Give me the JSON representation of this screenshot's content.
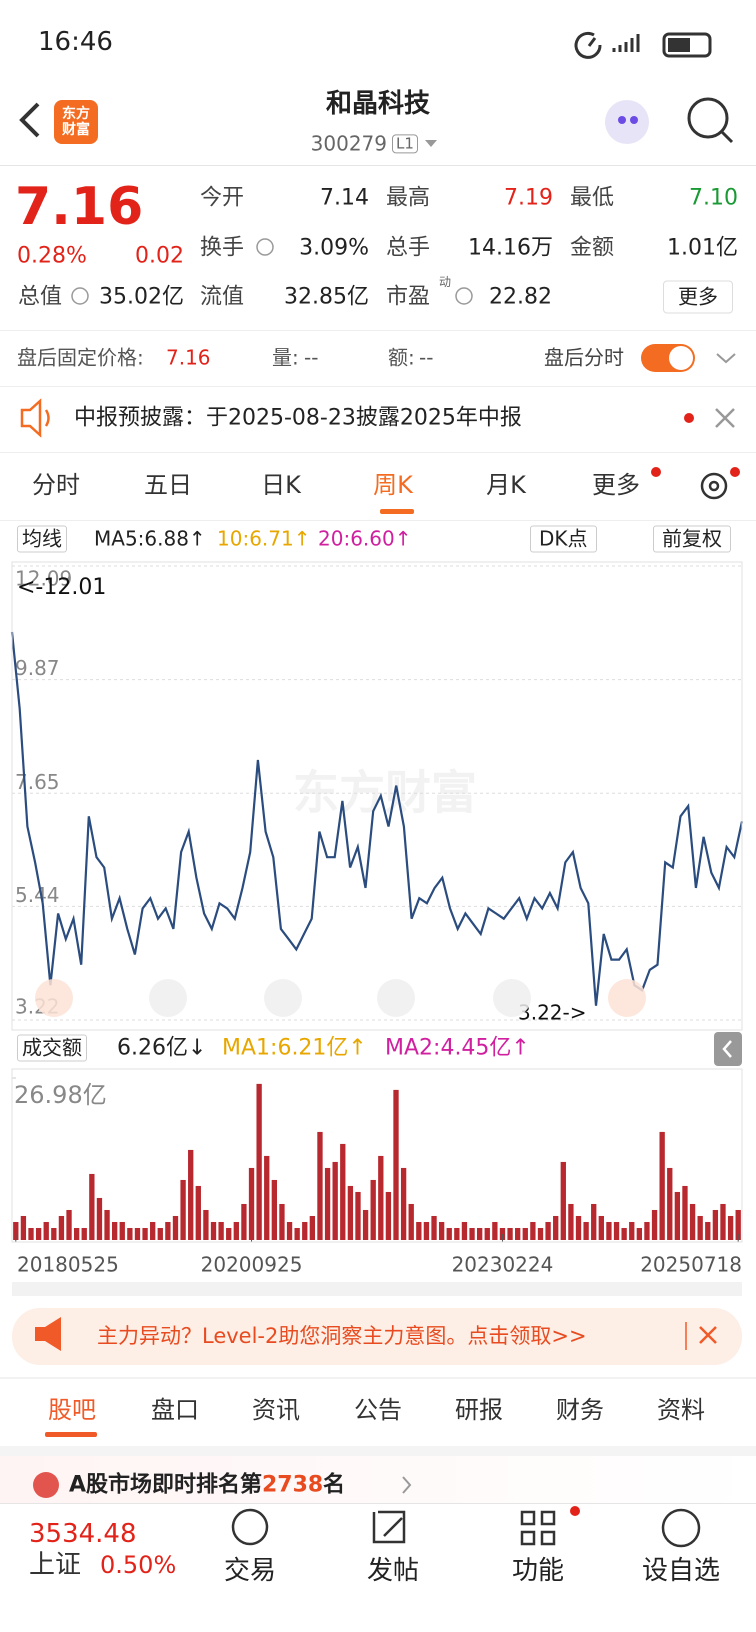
{
  "status_bar": {
    "time": "16:46"
  },
  "header": {
    "logo": "东方财富",
    "title": "和晶科技",
    "code": "300279",
    "code_badge": "L1"
  },
  "quote": {
    "price": "7.16",
    "change_pct": "0.28%",
    "change": "0.02",
    "fields": [
      {
        "label": "今开",
        "value": "7.14"
      },
      {
        "label": "最高",
        "value": "7.19"
      },
      {
        "label": "最低",
        "value": "7.10"
      },
      {
        "label": "换手",
        "value": "3.09%"
      },
      {
        "label": "总手",
        "value": "14.16万"
      },
      {
        "label": "金额",
        "value": "1.01亿"
      },
      {
        "label": "总值",
        "value": "35.02亿"
      },
      {
        "label": "流值",
        "value": "32.85亿"
      },
      {
        "label": "市盈",
        "value": "22.82"
      }
    ],
    "pe_badge": "动",
    "more": "更多"
  },
  "after_hours": {
    "label": "盘后固定价格:",
    "price": "7.16",
    "volume_label": "量:",
    "volume": "--",
    "amount_label": "额:",
    "amount": "--",
    "toggle_label": "盘后分时"
  },
  "notice": {
    "text": "中报预披露：于2025-08-23披露2025年中报"
  },
  "period_tabs": {
    "items": [
      "分时",
      "五日",
      "日K",
      "周K",
      "月K",
      "更多"
    ],
    "active": 3
  },
  "chart_controls": {
    "indicator": "均线",
    "ma": [
      "MA5:6.88↑",
      "10:6.71↑",
      "20:6.60↑"
    ],
    "dk": "DK点",
    "adjust": "前复权"
  },
  "chart_data": [
    {
      "type": "line",
      "watermark": "东方财富",
      "annotations": [
        "<-12.01",
        "3.22->"
      ],
      "ylim": [
        3.22,
        12.09
      ],
      "yticks": [
        3.22,
        5.44,
        7.65,
        9.87,
        12.09
      ],
      "grid": true,
      "series": [
        {
          "color": "#2b4c7e",
          "values": [
            10.8,
            9.3,
            7.0,
            6.3,
            5.5,
            3.9,
            5.3,
            4.8,
            5.2,
            4.3,
            7.2,
            6.4,
            6.2,
            5.2,
            5.6,
            5.0,
            4.5,
            5.4,
            5.6,
            5.2,
            5.4,
            5.0,
            6.5,
            6.9,
            6.0,
            5.3,
            5.0,
            5.5,
            5.4,
            5.2,
            5.8,
            6.5,
            8.3,
            6.9,
            6.4,
            5.0,
            4.8,
            4.6,
            4.9,
            5.2,
            6.9,
            6.4,
            6.4,
            7.5,
            6.2,
            6.6,
            5.8,
            7.3,
            7.6,
            7.0,
            7.8,
            7.0,
            5.2,
            5.6,
            5.5,
            5.8,
            6.0,
            5.4,
            5.0,
            5.3,
            5.1,
            4.9,
            5.4,
            5.3,
            5.2,
            5.4,
            5.6,
            5.2,
            5.6,
            5.4,
            5.7,
            5.4,
            6.3,
            6.5,
            5.8,
            5.5,
            3.5,
            4.9,
            4.4,
            4.4,
            4.6,
            3.9,
            3.8,
            4.2,
            4.3,
            6.3,
            6.2,
            7.2,
            7.4,
            5.8,
            6.8,
            6.1,
            5.8,
            6.6,
            6.4,
            7.1
          ]
        }
      ]
    },
    {
      "type": "bar",
      "color": "#b8292f",
      "categories": [
        "20180525",
        null,
        null,
        null,
        null,
        null,
        null,
        null,
        null,
        null,
        null,
        null,
        null,
        null,
        null,
        null,
        null,
        null,
        null,
        null,
        null,
        null,
        null,
        null,
        null,
        null,
        null,
        null,
        null,
        null,
        null,
        "20200925",
        null,
        null,
        null,
        null,
        null,
        null,
        null,
        null,
        null,
        null,
        null,
        null,
        null,
        null,
        null,
        null,
        null,
        null,
        null,
        null,
        null,
        null,
        null,
        null,
        null,
        null,
        null,
        null,
        null,
        null,
        null,
        null,
        "20230224",
        null,
        null,
        null,
        null,
        null,
        null,
        null,
        null,
        null,
        null,
        null,
        null,
        null,
        null,
        null,
        null,
        null,
        null,
        null,
        null,
        null,
        null,
        null,
        null,
        null,
        null,
        null,
        null,
        null,
        null,
        "20250718"
      ],
      "values": [
        3,
        4,
        2,
        2,
        3,
        2,
        4,
        5,
        2,
        2,
        11,
        7,
        5,
        3,
        3,
        2,
        2,
        2,
        3,
        2,
        3,
        4,
        10,
        15,
        9,
        5,
        3,
        3,
        2,
        3,
        6,
        12,
        26,
        14,
        10,
        6,
        3,
        2,
        3,
        4,
        18,
        12,
        13,
        16,
        9,
        8,
        5,
        10,
        14,
        8,
        25,
        12,
        6,
        3,
        3,
        4,
        3,
        2,
        2,
        3,
        2,
        2,
        2,
        3,
        2,
        2,
        2,
        2,
        3,
        2,
        3,
        4,
        13,
        6,
        4,
        3,
        6,
        4,
        3,
        3,
        2,
        3,
        2,
        3,
        5,
        18,
        12,
        8,
        9,
        6,
        4,
        3,
        5,
        6,
        4,
        5
      ],
      "ylim": [
        0,
        26.98
      ],
      "yticks": [
        {
          "value": 26.98,
          "label": "26.98亿"
        }
      ]
    }
  ],
  "volume_controls": {
    "indicator": "成交额",
    "current": "6.26亿↓",
    "ma": [
      "MA1:6.21亿↑",
      "MA2:4.45亿↑"
    ]
  },
  "promo": {
    "text": "主力异动？Level-2助您洞察主力意图。点击领取>>"
  },
  "content_tabs": {
    "items": [
      "股吧",
      "盘口",
      "资讯",
      "公告",
      "研报",
      "财务",
      "资料"
    ],
    "active": 0
  },
  "ranking": {
    "prefix": "A股市场即时排名第",
    "rank": "2738",
    "suffix": "名"
  },
  "bottom_nav": {
    "index_value": "3534.48",
    "index_name": "上证",
    "index_change": "0.50%",
    "items": [
      "交易",
      "发帖",
      "功能",
      "设自选"
    ]
  }
}
